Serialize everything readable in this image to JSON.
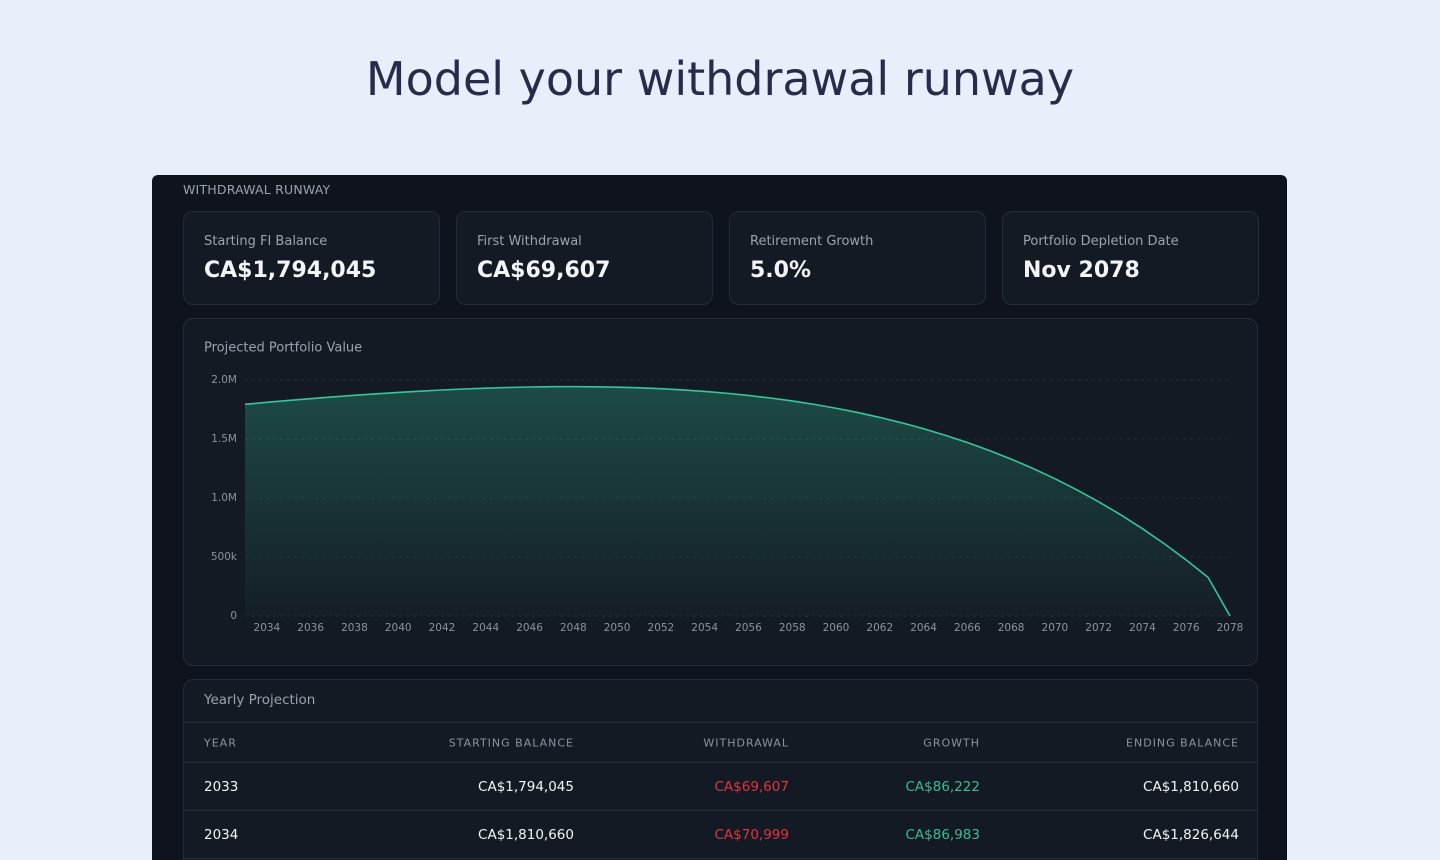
{
  "header": {
    "title": "Model your withdrawal runway"
  },
  "panel": {
    "title": "WITHDRAWAL RUNWAY"
  },
  "cards": [
    {
      "label": "Starting FI Balance",
      "value": "CA$1,794,045"
    },
    {
      "label": "First Withdrawal",
      "value": "CA$69,607"
    },
    {
      "label": "Retirement Growth",
      "value": "5.0%"
    },
    {
      "label": "Portfolio Depletion Date",
      "value": "Nov 2078"
    }
  ],
  "chart_data": {
    "type": "area",
    "title": "Projected Portfolio Value",
    "color": "#34c79a",
    "grid": true,
    "x": [
      2033,
      2034,
      2035,
      2036,
      2037,
      2038,
      2039,
      2040,
      2041,
      2042,
      2043,
      2044,
      2045,
      2046,
      2047,
      2048,
      2049,
      2050,
      2051,
      2052,
      2053,
      2054,
      2055,
      2056,
      2057,
      2058,
      2059,
      2060,
      2061,
      2062,
      2063,
      2064,
      2065,
      2066,
      2067,
      2068,
      2069,
      2070,
      2071,
      2072,
      2073,
      2074,
      2075,
      2076,
      2077,
      2078
    ],
    "values": [
      1794045,
      1810660,
      1826644,
      1841936,
      1856472,
      1870183,
      1882998,
      1894839,
      1905626,
      1915274,
      1923691,
      1930782,
      1936446,
      1940575,
      1943058,
      1943774,
      1942597,
      1939393,
      1934022,
      1926336,
      1916178,
      1903382,
      1887775,
      1869172,
      1847378,
      1822190,
      1793392,
      1760756,
      1724041,
      1682996,
      1637353,
      1586832,
      1531137,
      1469957,
      1402964,
      1329811,
      1250134,
      1163550,
      1069655,
      968023,
      858208,
      739738,
      612116,
      474822,
      327305,
      0
    ],
    "xlim": [
      2033,
      2078
    ],
    "xticks": [
      2034,
      2036,
      2038,
      2040,
      2042,
      2044,
      2046,
      2048,
      2050,
      2052,
      2054,
      2056,
      2058,
      2060,
      2062,
      2064,
      2066,
      2068,
      2070,
      2072,
      2074,
      2076,
      2078
    ],
    "ylim": [
      0,
      2000000
    ],
    "yticks": [
      0,
      {
        "value": 500000,
        "label": "500k"
      },
      {
        "value": 1000000,
        "label": "1.0M"
      },
      {
        "value": 1500000,
        "label": "1.5M"
      },
      {
        "value": 2000000,
        "label": "2.0M"
      }
    ]
  },
  "table": {
    "title": "Yearly Projection",
    "columns": [
      "YEAR",
      "STARTING BALANCE",
      "WITHDRAWAL",
      "GROWTH",
      "ENDING BALANCE"
    ],
    "rows": [
      [
        "2033",
        "CA$1,794,045",
        "CA$69,607",
        "CA$86,222",
        "CA$1,810,660"
      ],
      [
        "2034",
        "CA$1,810,660",
        "CA$70,999",
        "CA$86,983",
        "CA$1,826,644"
      ]
    ]
  }
}
